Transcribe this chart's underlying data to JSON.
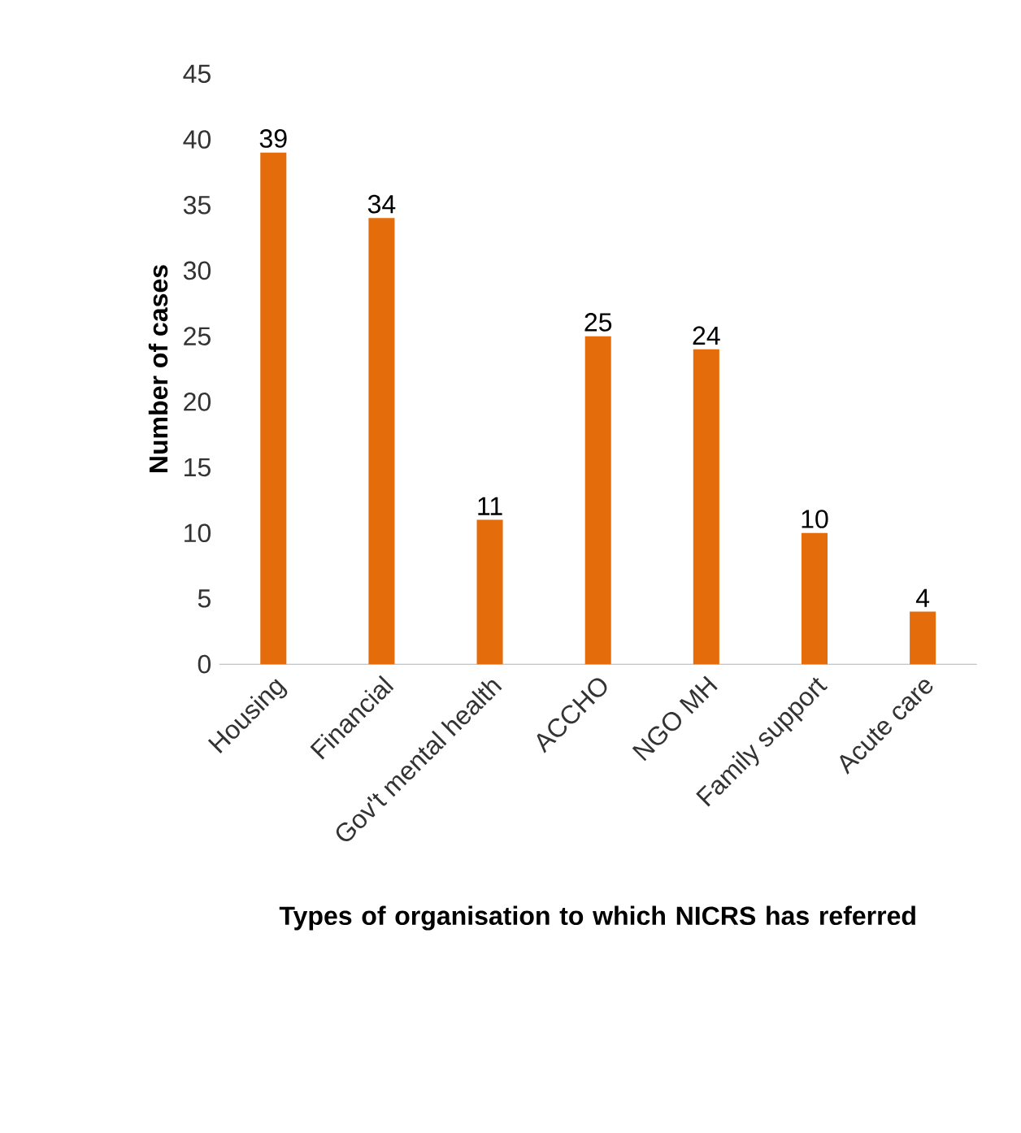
{
  "chart_data": {
    "type": "bar",
    "xlabel": "Types of organisation to which NICRS has referred",
    "ylabel": "Number of cases",
    "categories": [
      "Housing",
      "Financial",
      "Gov't mental health",
      "ACCHO",
      "NGO MH",
      "Family support",
      "Acute care"
    ],
    "values": [
      39,
      34,
      11,
      25,
      24,
      10,
      4
    ],
    "color": "#e46c0a",
    "data_labels": true,
    "ylim": [
      0,
      45
    ],
    "yticks": [
      0,
      5,
      10,
      15,
      20,
      25,
      30,
      35,
      40,
      45
    ],
    "grid": false
  }
}
